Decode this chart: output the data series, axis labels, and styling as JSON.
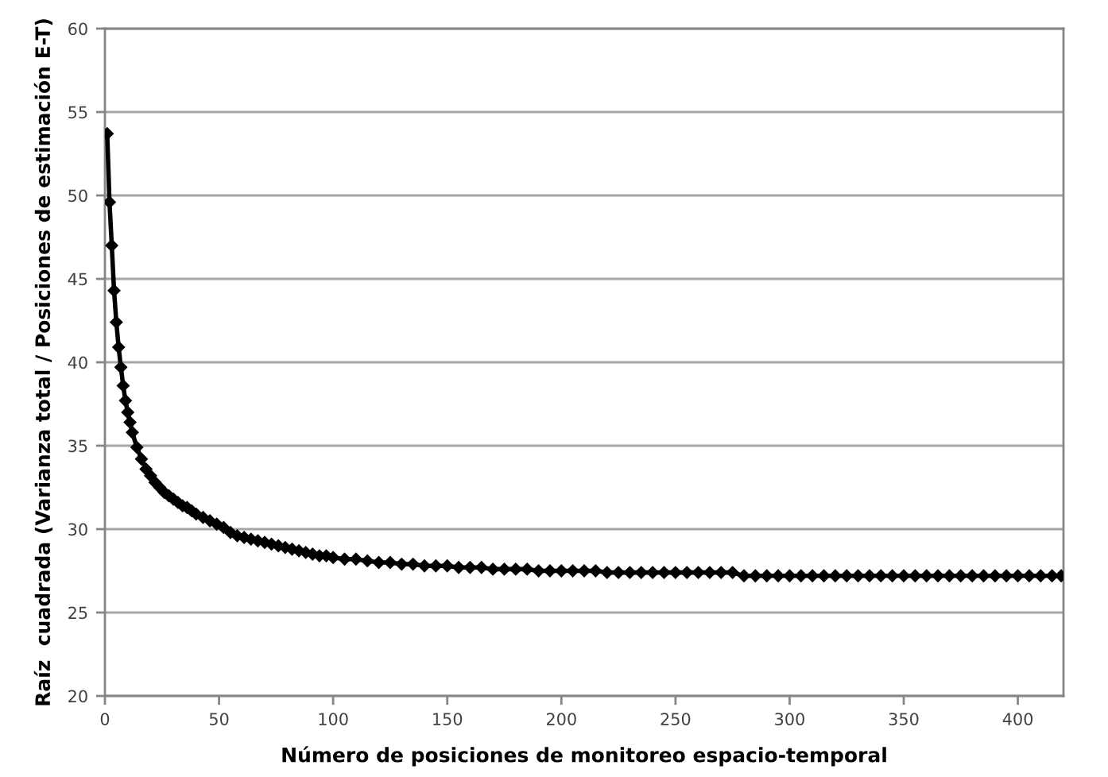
{
  "chart_data": {
    "type": "line",
    "xlabel": "Número de posiciones de monitoreo espacio-temporal",
    "ylabel": "Raíz  cuadrada (Varianza total / Posiciones de estimación E-T)",
    "x": [
      1,
      2,
      3,
      4,
      5,
      6,
      7,
      8,
      9,
      10,
      11,
      12,
      14,
      16,
      18,
      20,
      22,
      24,
      26,
      28,
      30,
      32,
      34,
      36,
      38,
      40,
      43,
      46,
      49,
      52,
      55,
      58,
      61,
      64,
      67,
      70,
      73,
      76,
      79,
      82,
      85,
      88,
      91,
      94,
      97,
      100,
      105,
      110,
      115,
      120,
      125,
      130,
      135,
      140,
      145,
      150,
      155,
      160,
      165,
      170,
      175,
      180,
      185,
      190,
      195,
      200,
      205,
      210,
      215,
      220,
      225,
      230,
      235,
      240,
      245,
      250,
      255,
      260,
      265,
      270,
      275,
      280,
      285,
      290,
      295,
      300,
      305,
      310,
      315,
      320,
      325,
      330,
      335,
      340,
      345,
      350,
      355,
      360,
      365,
      370,
      375,
      380,
      385,
      390,
      395,
      400,
      405,
      410,
      415,
      419
    ],
    "values": [
      53.7,
      49.6,
      47.0,
      44.3,
      42.4,
      40.9,
      39.7,
      38.6,
      37.7,
      37.0,
      36.4,
      35.8,
      34.9,
      34.2,
      33.6,
      33.2,
      32.8,
      32.5,
      32.2,
      32.0,
      31.8,
      31.6,
      31.4,
      31.3,
      31.1,
      30.9,
      30.7,
      30.5,
      30.3,
      30.1,
      29.8,
      29.6,
      29.5,
      29.4,
      29.3,
      29.2,
      29.1,
      29.0,
      28.9,
      28.8,
      28.7,
      28.6,
      28.5,
      28.4,
      28.4,
      28.3,
      28.2,
      28.2,
      28.1,
      28.0,
      28.0,
      27.9,
      27.9,
      27.8,
      27.8,
      27.8,
      27.7,
      27.7,
      27.7,
      27.6,
      27.6,
      27.6,
      27.6,
      27.5,
      27.5,
      27.5,
      27.5,
      27.5,
      27.5,
      27.4,
      27.4,
      27.4,
      27.4,
      27.4,
      27.4,
      27.4,
      27.4,
      27.4,
      27.4,
      27.4,
      27.4,
      27.2,
      27.2,
      27.2,
      27.2,
      27.2,
      27.2,
      27.2,
      27.2,
      27.2,
      27.2,
      27.2,
      27.2,
      27.2,
      27.2,
      27.2,
      27.2,
      27.2,
      27.2,
      27.2,
      27.2,
      27.2,
      27.2,
      27.2,
      27.2,
      27.2,
      27.2,
      27.2,
      27.2,
      27.2
    ],
    "color": "#000000",
    "xlim": [
      0,
      420
    ],
    "ylim": [
      20,
      60
    ],
    "xticks": [
      0,
      50,
      100,
      150,
      200,
      250,
      300,
      350,
      400
    ],
    "yticks": [
      20,
      25,
      30,
      35,
      40,
      45,
      50,
      55,
      60
    ],
    "grid": "y",
    "marker": "diamond",
    "line_style": "solid"
  }
}
